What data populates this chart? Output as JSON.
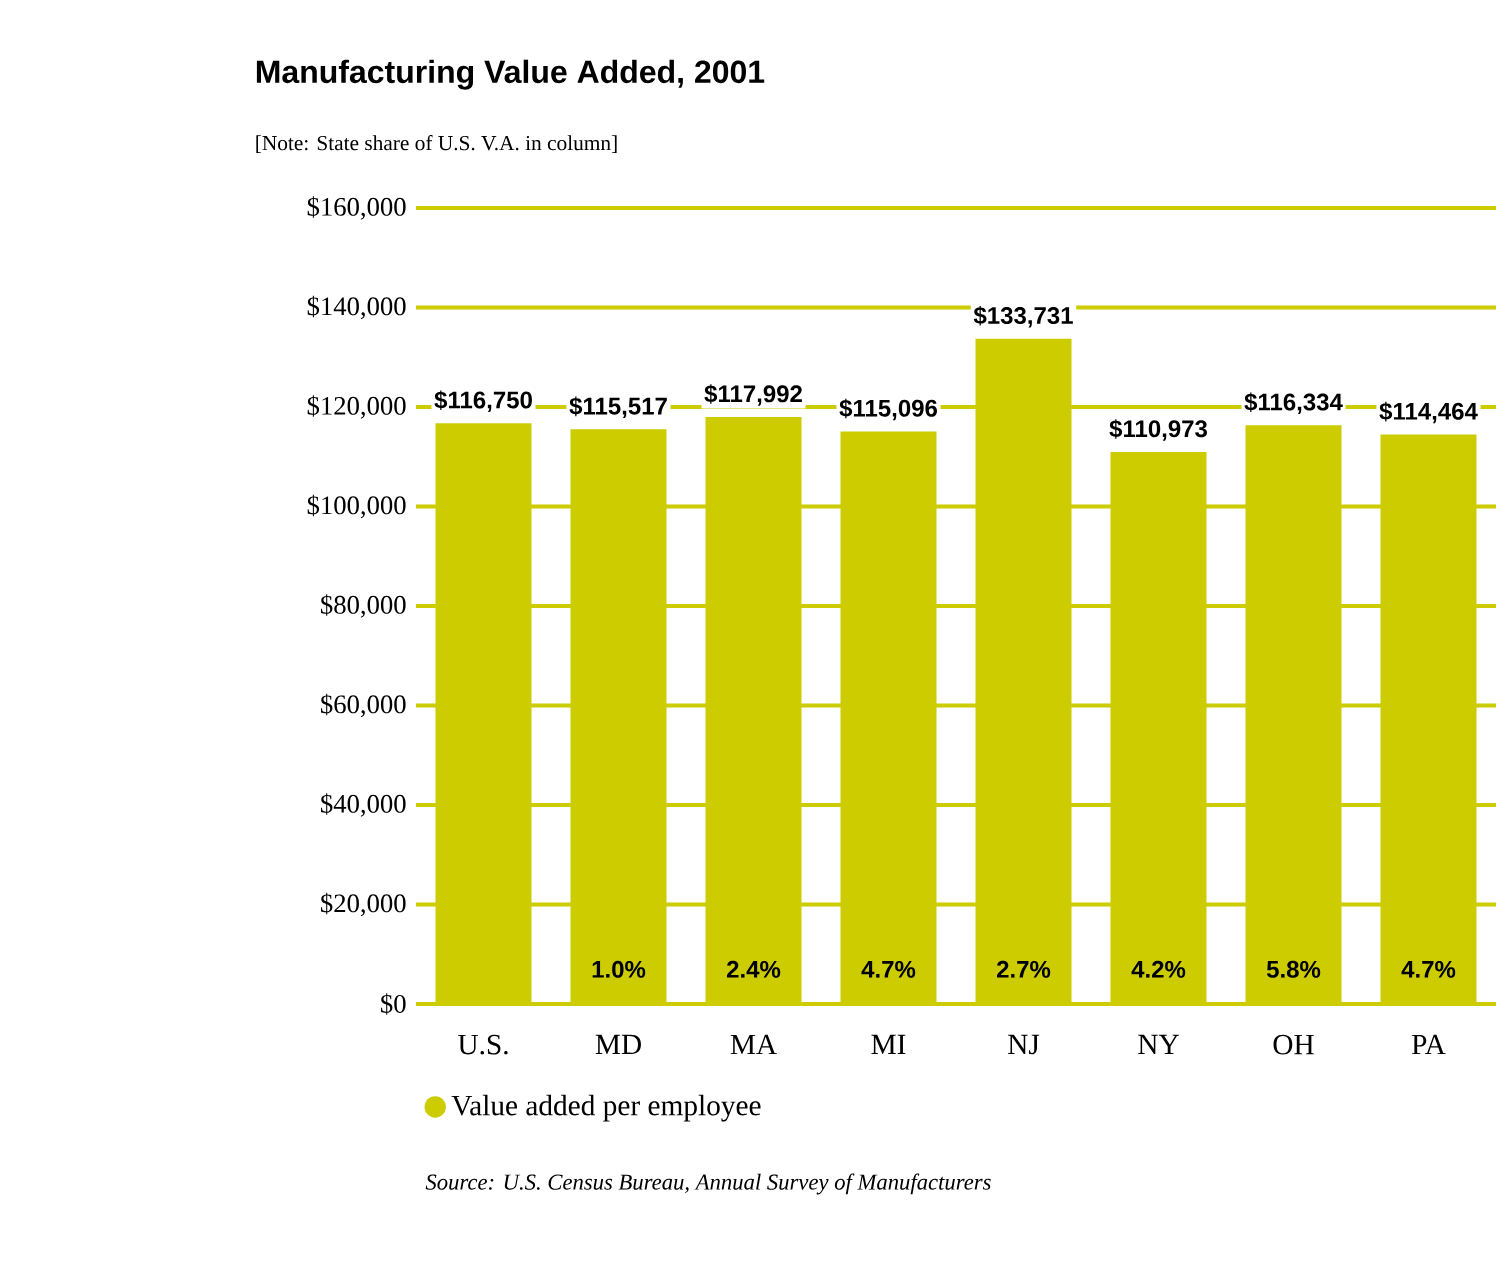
{
  "chart_data": {
    "type": "bar",
    "title": "Manufacturing Value Added, 2001",
    "subtitle": "[Note: State share of U.S. V.A. in column]",
    "categories": [
      "U.S.",
      "MD",
      "MA",
      "MI",
      "NJ",
      "NY",
      "OH",
      "PA"
    ],
    "series": [
      {
        "name": "Value added per employee",
        "color": "#cccc00",
        "values": [
          116750,
          115517,
          117992,
          115096,
          133731,
          110973,
          116334,
          114464
        ],
        "value_labels": [
          "$116,750",
          "$115,517",
          "$117,992",
          "$115,096",
          "$133,731",
          "$110,973",
          "$116,334",
          "$114,464"
        ]
      }
    ],
    "ylim": [
      0,
      160000
    ],
    "yticks": [
      {
        "value": 0,
        "label": "$0"
      },
      {
        "value": 20000,
        "label": "$20,000"
      },
      {
        "value": 40000,
        "label": "$40,000"
      },
      {
        "value": 60000,
        "label": "$60,000"
      },
      {
        "value": 80000,
        "label": "$80,000"
      },
      {
        "value": 100000,
        "label": "$100,000"
      },
      {
        "value": 120000,
        "label": "$120,000"
      },
      {
        "value": 140000,
        "label": "$140,000"
      },
      {
        "value": 160000,
        "label": "$160,000"
      }
    ],
    "grid": "y",
    "legend": "bottom",
    "annotations": [
      "1.0%",
      "2.4%",
      "4.7%",
      "2.7%",
      "4.2%",
      "5.8%",
      "4.7%",
      "Source: U.S. Census Bureau, Annual Survey of Manufacturers"
    ]
  }
}
